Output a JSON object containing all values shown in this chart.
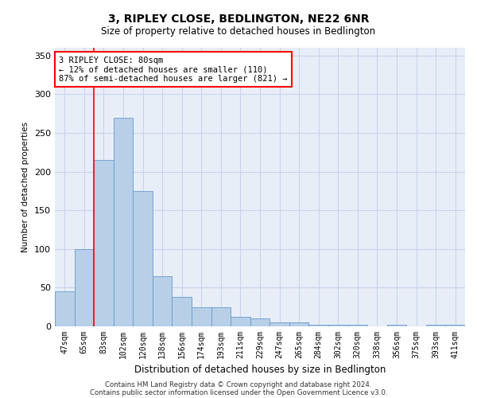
{
  "title": "3, RIPLEY CLOSE, BEDLINGTON, NE22 6NR",
  "subtitle": "Size of property relative to detached houses in Bedlington",
  "xlabel": "Distribution of detached houses by size in Bedlington",
  "ylabel": "Number of detached properties",
  "categories": [
    "47sqm",
    "65sqm",
    "83sqm",
    "102sqm",
    "120sqm",
    "138sqm",
    "156sqm",
    "174sqm",
    "193sqm",
    "211sqm",
    "229sqm",
    "247sqm",
    "265sqm",
    "284sqm",
    "302sqm",
    "320sqm",
    "338sqm",
    "356sqm",
    "375sqm",
    "393sqm",
    "411sqm"
  ],
  "values": [
    45,
    100,
    215,
    270,
    175,
    65,
    38,
    25,
    25,
    12,
    10,
    5,
    5,
    2,
    2,
    2,
    0,
    2,
    0,
    2,
    2
  ],
  "bar_color": "#b8cfe8",
  "bar_edge_color": "#6699cc",
  "grid_color": "#c8d4e8",
  "background_color": "#e8eef8",
  "annotation_text": "3 RIPLEY CLOSE: 80sqm\n← 12% of detached houses are smaller (110)\n87% of semi-detached houses are larger (821) →",
  "annotation_box_color": "white",
  "annotation_border_color": "red",
  "footer_line1": "Contains HM Land Registry data © Crown copyright and database right 2024.",
  "footer_line2": "Contains public sector information licensed under the Open Government Licence v3.0.",
  "ylim": [
    0,
    360
  ],
  "yticks": [
    0,
    50,
    100,
    150,
    200,
    250,
    300,
    350
  ]
}
